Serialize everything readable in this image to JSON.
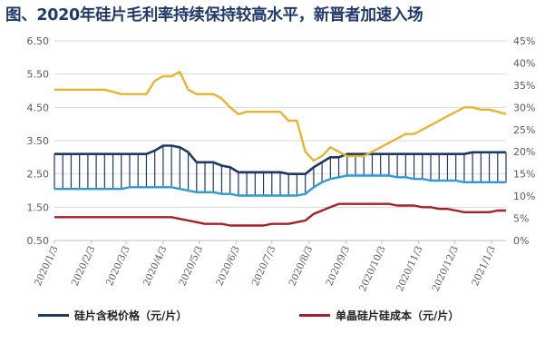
{
  "title": "图、2020年硅片毛利率持续保持较高水平，新晋者加速入场",
  "colors": {
    "price": "#1f3864",
    "cost": "#a5202a",
    "line3": "#2e9bd6",
    "margin": "#e6b530",
    "grid": "#d9d9d9",
    "hatch": "#1f3864"
  },
  "chart_data": {
    "type": "line",
    "title": "图、2020年硅片毛利率持续保持较高水平，新晋者加速入场",
    "x_ticks": [
      "2020/1/3",
      "2020/2/3",
      "2020/3/3",
      "2020/4/3",
      "2020/5/3",
      "2020/6/3",
      "2020/7/3",
      "2020/8/3",
      "2020/9/3",
      "2020/10/3",
      "2020/11/3",
      "2020/12/3",
      "2021/1/3"
    ],
    "x_points": [
      "2020/1/3",
      "2020/1/10",
      "2020/1/17",
      "2020/1/24",
      "2020/1/31",
      "2020/2/7",
      "2020/2/14",
      "2020/2/21",
      "2020/2/28",
      "2020/3/6",
      "2020/3/13",
      "2020/3/20",
      "2020/3/27",
      "2020/4/3",
      "2020/4/10",
      "2020/4/17",
      "2020/4/24",
      "2020/5/1",
      "2020/5/8",
      "2020/5/15",
      "2020/5/22",
      "2020/5/29",
      "2020/6/5",
      "2020/6/12",
      "2020/6/19",
      "2020/6/26",
      "2020/7/3",
      "2020/7/10",
      "2020/7/17",
      "2020/7/24",
      "2020/7/31",
      "2020/8/7",
      "2020/8/14",
      "2020/8/21",
      "2020/8/28",
      "2020/9/4",
      "2020/9/11",
      "2020/9/18",
      "2020/9/25",
      "2020/10/2",
      "2020/10/9",
      "2020/10/16",
      "2020/10/23",
      "2020/10/30",
      "2020/11/6",
      "2020/11/13",
      "2020/11/20",
      "2020/11/27",
      "2020/12/4",
      "2020/12/11",
      "2020/12/18",
      "2020/12/25",
      "2021/1/1",
      "2021/1/8",
      "2021/1/15"
    ],
    "y_left": {
      "min": 0.5,
      "max": 6.5,
      "ticks": [
        "0.50",
        "1.50",
        "2.50",
        "3.50",
        "4.50",
        "5.50",
        "6.50"
      ]
    },
    "y_right": {
      "min": 0,
      "max": 45,
      "ticks": [
        "0%",
        "5%",
        "10%",
        "15%",
        "20%",
        "25%",
        "30%",
        "35%",
        "40%",
        "45%"
      ]
    },
    "grid": true,
    "legend_position": "bottom",
    "series": [
      {
        "name": "硅片含税价格（元/片）",
        "axis": "left",
        "color": "#1f3864",
        "values": [
          3.1,
          3.1,
          3.1,
          3.1,
          3.1,
          3.1,
          3.1,
          3.1,
          3.1,
          3.1,
          3.1,
          3.1,
          3.2,
          3.35,
          3.35,
          3.3,
          3.15,
          2.85,
          2.85,
          2.85,
          2.75,
          2.7,
          2.55,
          2.55,
          2.55,
          2.55,
          2.55,
          2.55,
          2.5,
          2.5,
          2.5,
          2.7,
          2.85,
          3.0,
          3.0,
          3.1,
          3.1,
          3.1,
          3.1,
          3.1,
          3.1,
          3.1,
          3.1,
          3.1,
          3.1,
          3.1,
          3.1,
          3.1,
          3.1,
          3.1,
          3.15,
          3.15,
          3.15,
          3.15,
          3.15
        ]
      },
      {
        "name": "单晶硅片硅成本（元/片）",
        "axis": "left",
        "color": "#a5202a",
        "values": [
          1.2,
          1.2,
          1.2,
          1.2,
          1.2,
          1.2,
          1.2,
          1.2,
          1.2,
          1.2,
          1.2,
          1.2,
          1.2,
          1.2,
          1.2,
          1.15,
          1.1,
          1.05,
          1.0,
          1.0,
          1.0,
          0.95,
          0.95,
          0.95,
          0.95,
          0.95,
          1.0,
          1.0,
          1.0,
          1.05,
          1.1,
          1.3,
          1.4,
          1.5,
          1.6,
          1.6,
          1.6,
          1.6,
          1.6,
          1.6,
          1.6,
          1.55,
          1.55,
          1.55,
          1.5,
          1.5,
          1.45,
          1.45,
          1.4,
          1.35,
          1.35,
          1.35,
          1.35,
          1.4,
          1.4
        ]
      },
      {
        "axis": "left",
        "color": "#2e9bd6",
        "values": [
          2.05,
          2.05,
          2.05,
          2.05,
          2.05,
          2.05,
          2.05,
          2.05,
          2.05,
          2.1,
          2.1,
          2.1,
          2.1,
          2.1,
          2.1,
          2.05,
          2.0,
          1.95,
          1.95,
          1.95,
          1.9,
          1.9,
          1.85,
          1.85,
          1.85,
          1.85,
          1.85,
          1.85,
          1.85,
          1.85,
          1.9,
          2.1,
          2.25,
          2.35,
          2.4,
          2.45,
          2.45,
          2.45,
          2.45,
          2.45,
          2.45,
          2.4,
          2.4,
          2.35,
          2.35,
          2.3,
          2.3,
          2.3,
          2.3,
          2.25,
          2.25,
          2.25,
          2.25,
          2.25,
          2.25
        ]
      },
      {
        "axis": "right",
        "color": "#e6b530",
        "values": [
          34,
          34,
          34,
          34,
          34,
          34,
          34,
          33.5,
          33,
          33,
          33,
          33,
          36,
          37,
          37,
          38,
          34,
          33,
          33,
          33,
          32,
          30,
          28.5,
          29,
          29,
          29,
          29,
          29,
          27,
          27,
          20,
          18,
          19,
          21,
          20,
          19,
          19,
          19,
          20,
          21,
          22,
          23,
          24,
          24,
          25,
          26,
          27,
          28,
          29,
          30,
          30,
          29.5,
          29.5,
          29,
          28.5
        ]
      }
    ]
  },
  "legend": {
    "items": [
      {
        "label": "硅片含税价格（元/片）",
        "color": "#1f3864"
      },
      {
        "label": "单晶硅片硅成本（元/片）",
        "color": "#a5202a"
      }
    ]
  }
}
